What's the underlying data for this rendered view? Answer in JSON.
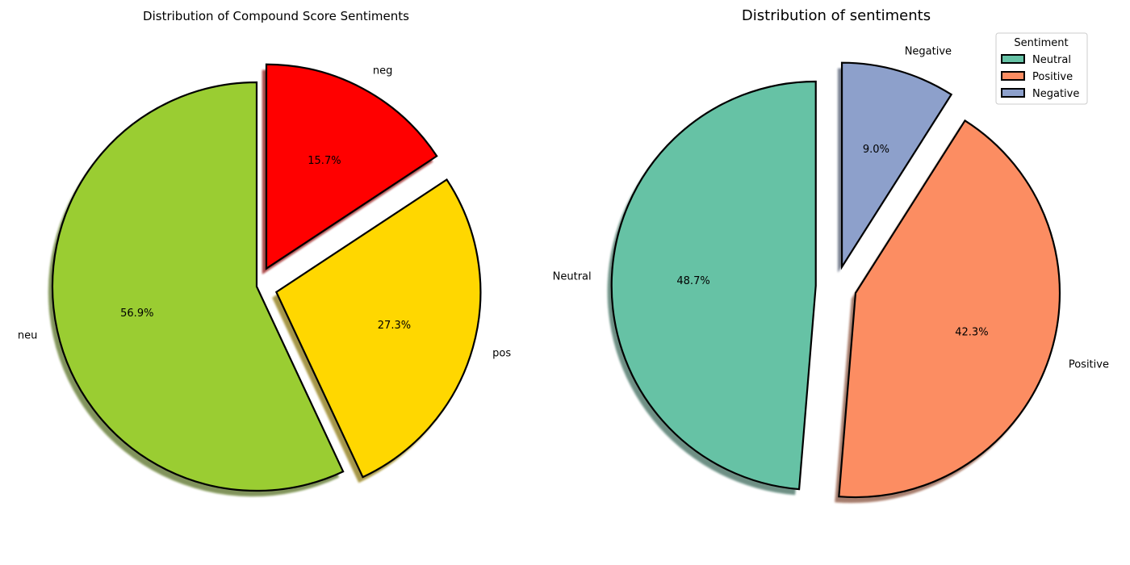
{
  "chart_data": [
    {
      "type": "pie",
      "title": "Distribution of Compound Score Sentiments",
      "slices": [
        {
          "label": "neu",
          "value": 56.9,
          "pct_label": "56.9%",
          "color": "#9ACD32"
        },
        {
          "label": "pos",
          "value": 27.3,
          "pct_label": "27.3%",
          "color": "#FFD700"
        },
        {
          "label": "neg",
          "value": 15.7,
          "pct_label": "15.7%",
          "color": "#FF0000"
        }
      ]
    },
    {
      "type": "pie",
      "title": "Distribution of sentiments",
      "slices": [
        {
          "label": "Neutral",
          "value": 48.7,
          "pct_label": "48.7%",
          "color": "#66C2A5"
        },
        {
          "label": "Positive",
          "value": 42.3,
          "pct_label": "42.3%",
          "color": "#FC8D62"
        },
        {
          "label": "Negative",
          "value": 9.0,
          "pct_label": "9.0%",
          "color": "#8DA0CB"
        }
      ],
      "legend": {
        "title": "Sentiment",
        "placement": "top-right",
        "items": [
          "Neutral",
          "Positive",
          "Negative"
        ]
      }
    }
  ]
}
